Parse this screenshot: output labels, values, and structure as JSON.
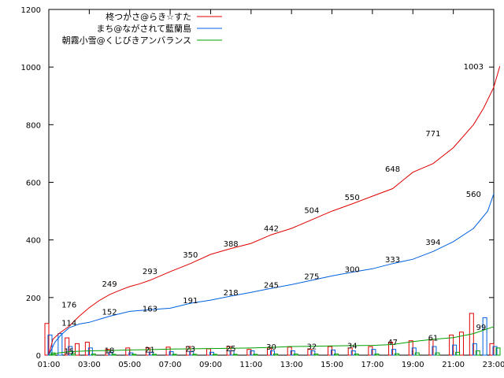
{
  "chart_data": {
    "type": "line",
    "x_labels": [
      "01:00",
      "03:00",
      "05:00",
      "07:00",
      "09:00",
      "11:00",
      "13:00",
      "15:00",
      "17:00",
      "19:00",
      "21:00",
      "23:00"
    ],
    "y_ticks": [
      0,
      200,
      400,
      600,
      800,
      1000,
      1200
    ],
    "ylim": [
      0,
      1200
    ],
    "x_range_hours": [
      1,
      23
    ],
    "legend_position": "top-left",
    "series": [
      {
        "name": "柊つかさ@らき☆すた",
        "color": "#e00000",
        "cumulative": [
          [
            1,
            0
          ],
          [
            1.2,
            55
          ],
          [
            1.5,
            75
          ],
          [
            2,
            100
          ],
          [
            2.5,
            135
          ],
          [
            3,
            165
          ],
          [
            3.5,
            190
          ],
          [
            4,
            210
          ],
          [
            4.5,
            225
          ],
          [
            5,
            238
          ],
          [
            5.5,
            248
          ],
          [
            6,
            260
          ],
          [
            6.5,
            275
          ],
          [
            7,
            290
          ],
          [
            8,
            318
          ],
          [
            9,
            350
          ],
          [
            10,
            370
          ],
          [
            11,
            388
          ],
          [
            12,
            418
          ],
          [
            13,
            440
          ],
          [
            14,
            470
          ],
          [
            15,
            500
          ],
          [
            16,
            525
          ],
          [
            17,
            552
          ],
          [
            18,
            578
          ],
          [
            19,
            635
          ],
          [
            20,
            665
          ],
          [
            21,
            720
          ],
          [
            22,
            800
          ],
          [
            22.5,
            858
          ],
          [
            23,
            930
          ],
          [
            23.3,
            1003
          ]
        ],
        "labels": [
          [
            2,
            176
          ],
          [
            4,
            249
          ],
          [
            6,
            293
          ],
          [
            8,
            350
          ],
          [
            10,
            388
          ],
          [
            12,
            442
          ],
          [
            14,
            504
          ],
          [
            16,
            550
          ],
          [
            18,
            648
          ],
          [
            20,
            771
          ],
          [
            22,
            1003
          ]
        ],
        "hourly": [
          [
            1,
            110
          ],
          [
            2,
            60
          ],
          [
            2.5,
            40
          ],
          [
            3,
            45
          ],
          [
            4,
            20
          ],
          [
            5,
            25
          ],
          [
            6,
            25
          ],
          [
            7,
            28
          ],
          [
            8,
            30
          ],
          [
            9,
            22
          ],
          [
            10,
            30
          ],
          [
            11,
            20
          ],
          [
            12,
            25
          ],
          [
            13,
            28
          ],
          [
            14,
            20
          ],
          [
            15,
            30
          ],
          [
            16,
            25
          ],
          [
            17,
            30
          ],
          [
            18,
            45
          ],
          [
            19,
            50
          ],
          [
            20,
            55
          ],
          [
            21,
            70
          ],
          [
            21.5,
            80
          ],
          [
            22,
            145
          ],
          [
            23,
            40
          ]
        ]
      },
      {
        "name": "まち@ながされて藍蘭島",
        "color": "#0060e0",
        "cumulative": [
          [
            1,
            0
          ],
          [
            1.3,
            45
          ],
          [
            1.6,
            70
          ],
          [
            2,
            95
          ],
          [
            2.5,
            108
          ],
          [
            3,
            114
          ],
          [
            4,
            135
          ],
          [
            5,
            152
          ],
          [
            6,
            158
          ],
          [
            7,
            163
          ],
          [
            8,
            180
          ],
          [
            9,
            191
          ],
          [
            10,
            205
          ],
          [
            11,
            218
          ],
          [
            12,
            232
          ],
          [
            13,
            245
          ],
          [
            14,
            260
          ],
          [
            15,
            275
          ],
          [
            16,
            288
          ],
          [
            17,
            300
          ],
          [
            18,
            318
          ],
          [
            19,
            333
          ],
          [
            20,
            360
          ],
          [
            21,
            394
          ],
          [
            22,
            440
          ],
          [
            22.7,
            500
          ],
          [
            23,
            560
          ]
        ],
        "labels": [
          [
            2,
            114
          ],
          [
            4,
            152
          ],
          [
            6,
            163
          ],
          [
            8,
            191
          ],
          [
            10,
            218
          ],
          [
            12,
            245
          ],
          [
            14,
            275
          ],
          [
            16,
            300
          ],
          [
            18,
            333
          ],
          [
            20,
            394
          ],
          [
            22,
            560
          ]
        ],
        "hourly": [
          [
            1,
            70
          ],
          [
            1.5,
            75
          ],
          [
            2,
            30
          ],
          [
            3,
            25
          ],
          [
            4,
            10
          ],
          [
            5,
            8
          ],
          [
            6,
            10
          ],
          [
            7,
            12
          ],
          [
            8,
            12
          ],
          [
            9,
            10
          ],
          [
            10,
            15
          ],
          [
            11,
            15
          ],
          [
            12,
            15
          ],
          [
            13,
            15
          ],
          [
            14,
            15
          ],
          [
            15,
            18
          ],
          [
            16,
            15
          ],
          [
            17,
            20
          ],
          [
            18,
            20
          ],
          [
            19,
            25
          ],
          [
            20,
            30
          ],
          [
            21,
            35
          ],
          [
            22,
            40
          ],
          [
            22.5,
            130
          ],
          [
            23,
            30
          ]
        ]
      },
      {
        "name": "朝霧小雪@くじびきアンバランス",
        "color": "#00a000",
        "cumulative": [
          [
            1,
            0
          ],
          [
            1.5,
            8
          ],
          [
            2,
            12
          ],
          [
            3,
            15
          ],
          [
            4,
            16
          ],
          [
            5,
            18
          ],
          [
            6,
            19
          ],
          [
            7,
            21
          ],
          [
            8,
            22
          ],
          [
            9,
            23
          ],
          [
            10,
            24
          ],
          [
            11,
            25
          ],
          [
            12,
            27
          ],
          [
            13,
            30
          ],
          [
            14,
            31
          ],
          [
            15,
            32
          ],
          [
            16,
            33
          ],
          [
            17,
            34
          ],
          [
            18,
            37
          ],
          [
            19,
            47
          ],
          [
            20,
            55
          ],
          [
            21,
            61
          ],
          [
            22,
            75
          ],
          [
            23,
            99
          ]
        ],
        "labels": [
          [
            2,
            15
          ],
          [
            4,
            18
          ],
          [
            6,
            21
          ],
          [
            8,
            23
          ],
          [
            10,
            25
          ],
          [
            12,
            30
          ],
          [
            14,
            32
          ],
          [
            16,
            34
          ],
          [
            18,
            47
          ],
          [
            20,
            61
          ],
          [
            22.7,
            99
          ]
        ],
        "hourly": [
          [
            1,
            8
          ],
          [
            2,
            5
          ],
          [
            3,
            4
          ],
          [
            4,
            3
          ],
          [
            5,
            3
          ],
          [
            6,
            3
          ],
          [
            7,
            3
          ],
          [
            8,
            3
          ],
          [
            9,
            3
          ],
          [
            10,
            3
          ],
          [
            11,
            3
          ],
          [
            12,
            4
          ],
          [
            13,
            4
          ],
          [
            14,
            4
          ],
          [
            15,
            4
          ],
          [
            16,
            4
          ],
          [
            17,
            4
          ],
          [
            18,
            5
          ],
          [
            19,
            8
          ],
          [
            20,
            8
          ],
          [
            21,
            10
          ],
          [
            22,
            15
          ],
          [
            23,
            25
          ]
        ]
      }
    ]
  }
}
